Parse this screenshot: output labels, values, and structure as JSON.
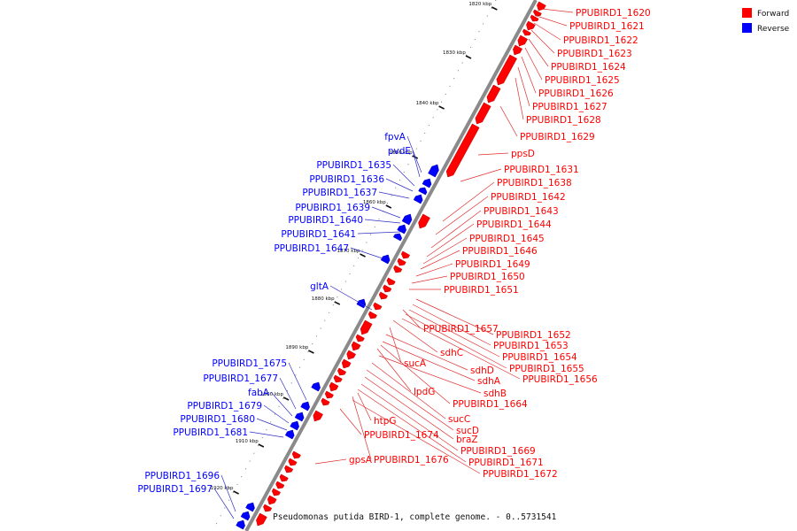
{
  "legend": {
    "items": [
      {
        "label": "Forward",
        "color": "#ff0000"
      },
      {
        "label": "Reverse",
        "color": "#0000ff"
      }
    ]
  },
  "caption": "Pseudomonas putida BIRD-1, complete genome. - 0..5731541",
  "colors": {
    "forward": "#ff0000",
    "reverse": "#0000ff",
    "backbone": "#888888",
    "line_forward": "#e03030",
    "line_reverse": "#3030c0"
  },
  "ticks": [
    "1820 kbp",
    "1830 kbp",
    "1840 kbp",
    "1850 kbp",
    "1860 kbp",
    "1870 kbp",
    "1880 kbp",
    "1890 kbp",
    "1900 kbp",
    "1910 kbp",
    "1920 kbp"
  ],
  "forward_labels": [
    "PPUBIRD1_1620",
    "PPUBIRD1_1621",
    "PPUBIRD1_1622",
    "PPUBIRD1_1623",
    "PPUBIRD1_1624",
    "PPUBIRD1_1625",
    "PPUBIRD1_1626",
    "PPUBIRD1_1627",
    "PPUBIRD1_1628",
    "PPUBIRD1_1629",
    "ppsD",
    "PPUBIRD1_1631",
    "PPUBIRD1_1638",
    "PPUBIRD1_1642",
    "PPUBIRD1_1643",
    "PPUBIRD1_1644",
    "PPUBIRD1_1645",
    "PPUBIRD1_1646",
    "PPUBIRD1_1649",
    "PPUBIRD1_1650",
    "PPUBIRD1_1651",
    "PPUBIRD1_1657",
    "PPUBIRD1_1652",
    "PPUBIRD1_1653",
    "sdhC",
    "PPUBIRD1_1654",
    "sucA",
    "PPUBIRD1_1655",
    "sdhD",
    "PPUBIRD1_1656",
    "sdhA",
    "lpdG",
    "sdhB",
    "PPUBIRD1_1664",
    "sucC",
    "htpG",
    "sucD",
    "PPUBIRD1_1674",
    "braZ",
    "PPUBIRD1_1669",
    "PPUBIRD1_1671",
    "gpsA",
    "PPUBIRD1_1676",
    "PPUBIRD1_1672"
  ],
  "reverse_labels": [
    "fpvA",
    "pvdE",
    "PPUBIRD1_1635",
    "PPUBIRD1_1636",
    "PPUBIRD1_1637",
    "PPUBIRD1_1639",
    "PPUBIRD1_1640",
    "PPUBIRD1_1641",
    "PPUBIRD1_1647",
    "gltA",
    "PPUBIRD1_1675",
    "PPUBIRD1_1677",
    "fabA",
    "PPUBIRD1_1679",
    "PPUBIRD1_1680",
    "PPUBIRD1_1681",
    "PPUBIRD1_1696",
    "PPUBIRD1_1697"
  ]
}
